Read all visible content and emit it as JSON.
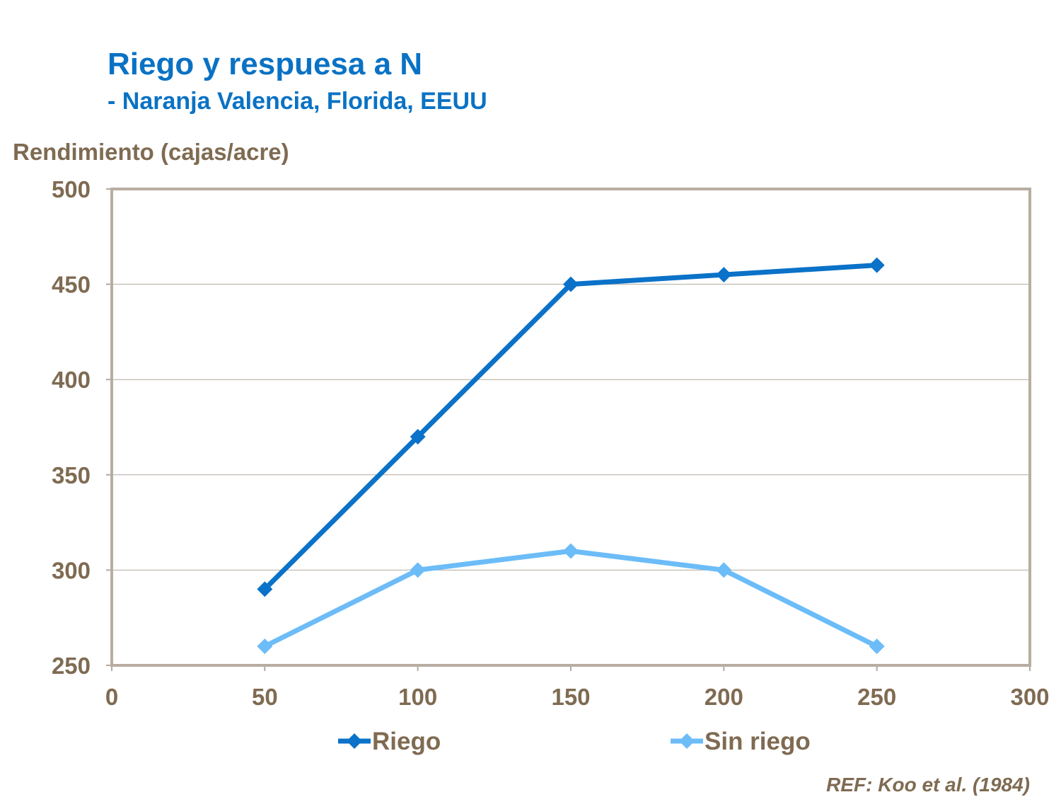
{
  "chart_data": {
    "type": "line",
    "title": "Riego y respuesa a N",
    "subtitle": "- Naranja Valencia, Florida, EEUU",
    "xlabel": "",
    "ylabel": "Rendimiento (cajas/acre)",
    "xlim": [
      0,
      300
    ],
    "ylim": [
      250,
      500
    ],
    "xticks": [
      0,
      50,
      100,
      150,
      200,
      250,
      300
    ],
    "yticks": [
      250,
      300,
      350,
      400,
      450,
      500
    ],
    "grid": "horizontal",
    "legend_position": "bottom",
    "x": [
      50,
      100,
      150,
      200,
      250
    ],
    "series": [
      {
        "name": "Riego",
        "values": [
          290,
          370,
          450,
          455,
          460
        ],
        "color": "#0a72c8"
      },
      {
        "name": "Sin riego",
        "values": [
          260,
          300,
          310,
          300,
          260
        ],
        "color": "#6cbcf8"
      }
    ],
    "annotation": "REF: Koo et al. (1984)"
  }
}
